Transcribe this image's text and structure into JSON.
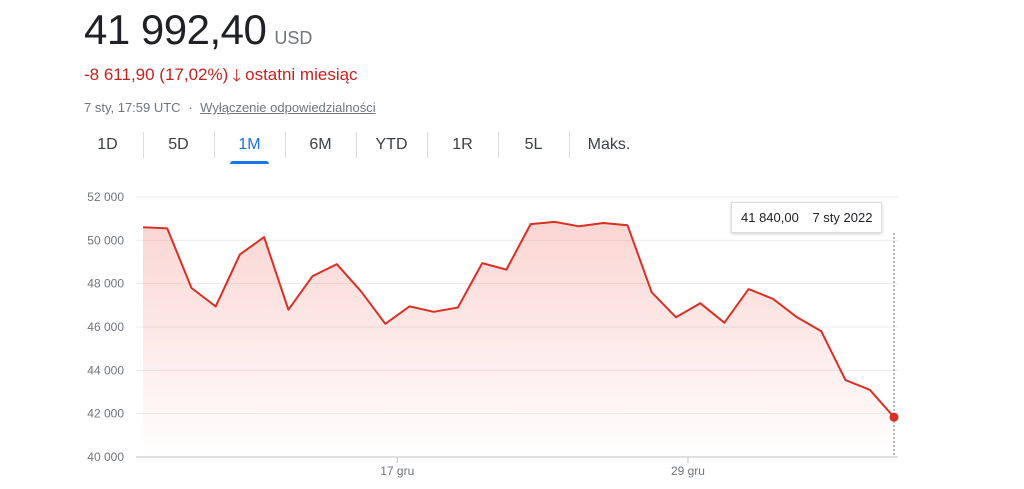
{
  "header": {
    "price": "41 992,40",
    "currency": "USD",
    "change": "-8 611,90 (17,02%)",
    "change_period": "ostatni miesiąc",
    "arrow_icon": "arrow-down-icon",
    "timestamp": "7 sty, 17:59 UTC",
    "separator": "·",
    "disclaimer_link": "Wyłączenie odpowiedzialności"
  },
  "tabs": [
    {
      "label": "1D",
      "active": false
    },
    {
      "label": "5D",
      "active": false
    },
    {
      "label": "1M",
      "active": true
    },
    {
      "label": "6M",
      "active": false
    },
    {
      "label": "YTD",
      "active": false
    },
    {
      "label": "1R",
      "active": false
    },
    {
      "label": "5L",
      "active": false
    },
    {
      "label": "Maks.",
      "active": false
    }
  ],
  "tooltip": {
    "value": "41 840,00",
    "date": "7 sty 2022"
  },
  "colors": {
    "line": "#d93025",
    "negative_text": "#c5221f",
    "accent": "#1a73e8"
  },
  "chart_data": {
    "type": "area",
    "ylim": [
      40000,
      52000
    ],
    "y_ticks": [
      52000,
      50000,
      48000,
      46000,
      44000,
      42000,
      40000
    ],
    "y_tick_labels": [
      "52 000",
      "50 000",
      "48 000",
      "46 000",
      "44 000",
      "42 000",
      "40 000"
    ],
    "x_ticks": [
      {
        "label": "17 gru",
        "index": 10
      },
      {
        "label": "29 gru",
        "index": 22
      }
    ],
    "grid": true,
    "series": [
      {
        "values": [
          50600,
          50550,
          47800,
          46950,
          49350,
          50150,
          46800,
          48350,
          48900,
          47650,
          46150,
          46950,
          46700,
          46900,
          48950,
          48650,
          50750,
          50850,
          50650,
          50800,
          50700,
          47600,
          46450,
          47100,
          46200,
          47750,
          47300,
          46450,
          45800,
          43550,
          43100,
          41840
        ]
      }
    ],
    "highlight_index": 31
  }
}
